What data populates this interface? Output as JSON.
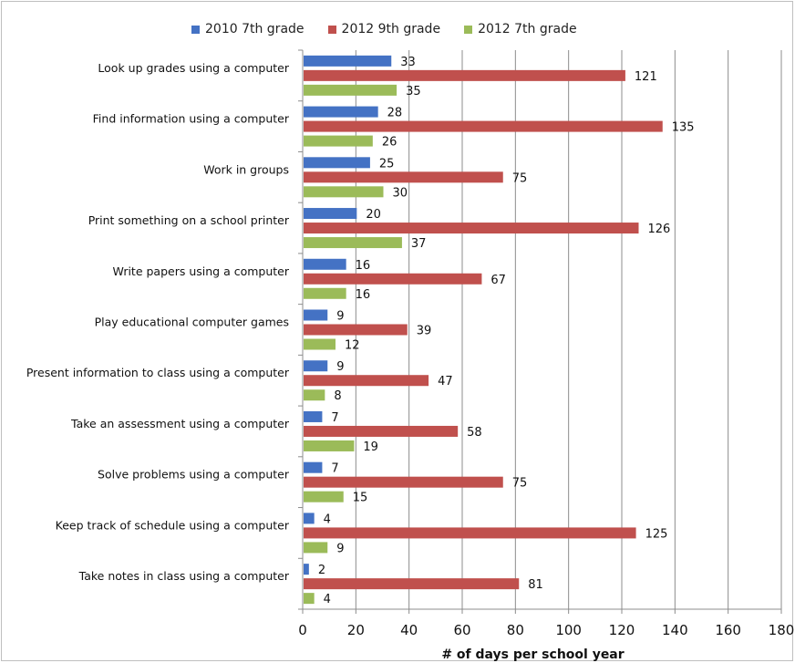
{
  "chart_data": {
    "type": "bar",
    "orientation": "horizontal",
    "categories": [
      "Look up grades using a computer",
      "Find information using a computer",
      "Work in groups",
      "Print something on a school printer",
      "Write papers using a computer",
      "Play educational computer games",
      "Present information to class using a computer",
      "Take an assessment using a computer",
      "Solve problems using a computer",
      "Keep track of schedule using a computer",
      "Take notes in class using a computer"
    ],
    "series": [
      {
        "name": "2010 7th grade",
        "color": "#4472c4",
        "values": [
          33,
          28,
          25,
          20,
          16,
          9,
          9,
          7,
          7,
          4,
          2
        ]
      },
      {
        "name": "2012 9th grade",
        "color": "#c0504d",
        "values": [
          121,
          135,
          75,
          126,
          67,
          39,
          47,
          58,
          75,
          125,
          81
        ]
      },
      {
        "name": "2012 7th grade",
        "color": "#9bbb59",
        "values": [
          35,
          26,
          30,
          37,
          16,
          12,
          8,
          19,
          15,
          9,
          4
        ]
      }
    ],
    "title": "",
    "xlabel": "# of days per school year",
    "ylabel": "",
    "xlim": [
      0,
      180
    ],
    "xticks": [
      "0",
      "20",
      "40",
      "60",
      "80",
      "100",
      "120",
      "140",
      "160",
      "180"
    ],
    "grid": "vertical",
    "legend": "top"
  }
}
